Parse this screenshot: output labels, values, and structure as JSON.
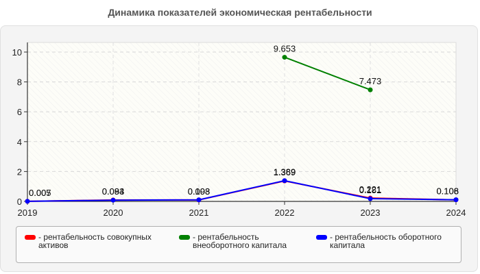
{
  "title": "Динамика показателей экономическая рентабельности",
  "chart_data": {
    "type": "line",
    "title": "Динамика показателей экономическая рентабельности",
    "xlabel": "",
    "ylabel": "",
    "categories": [
      "2019",
      "2020",
      "2021",
      "2022",
      "2023",
      "2024"
    ],
    "ylim": [
      0,
      10.5
    ],
    "yticks": [
      0,
      2,
      4,
      6,
      8,
      10
    ],
    "grid": true,
    "legend_position": "bottom",
    "series": [
      {
        "name": "рентабельность совокупных активов",
        "color": "#ff0000",
        "values": [
          0.005,
          0.094,
          0.098,
          1.369,
          0.221,
          0.106
        ],
        "labels": [
          "0.005",
          "0.094",
          "0.098",
          "1.369",
          "0.221",
          "0.106"
        ]
      },
      {
        "name": "рентабельность внеоборотного капитала",
        "color": "#008000",
        "values": [
          null,
          null,
          null,
          9.653,
          7.473,
          null
        ],
        "labels": [
          "",
          "",
          "",
          "9.653",
          "7.473",
          ""
        ]
      },
      {
        "name": "рентабельность оборотного капитала",
        "color": "#0000ff",
        "values": [
          0.007,
          0.083,
          0.103,
          1.389,
          0.181,
          0.108
        ],
        "labels": [
          "0.007",
          "0.083",
          "0.103",
          "1.389",
          "0.181",
          "0.108"
        ]
      }
    ]
  },
  "legend": {
    "items": [
      {
        "label": "- рентабельность совокупных активов",
        "color": "#ff0000"
      },
      {
        "label": "- рентабельность внеоборотного капитала",
        "color": "#008000"
      },
      {
        "label": "- рентабельность оборотного капитала",
        "color": "#0000ff"
      }
    ]
  }
}
